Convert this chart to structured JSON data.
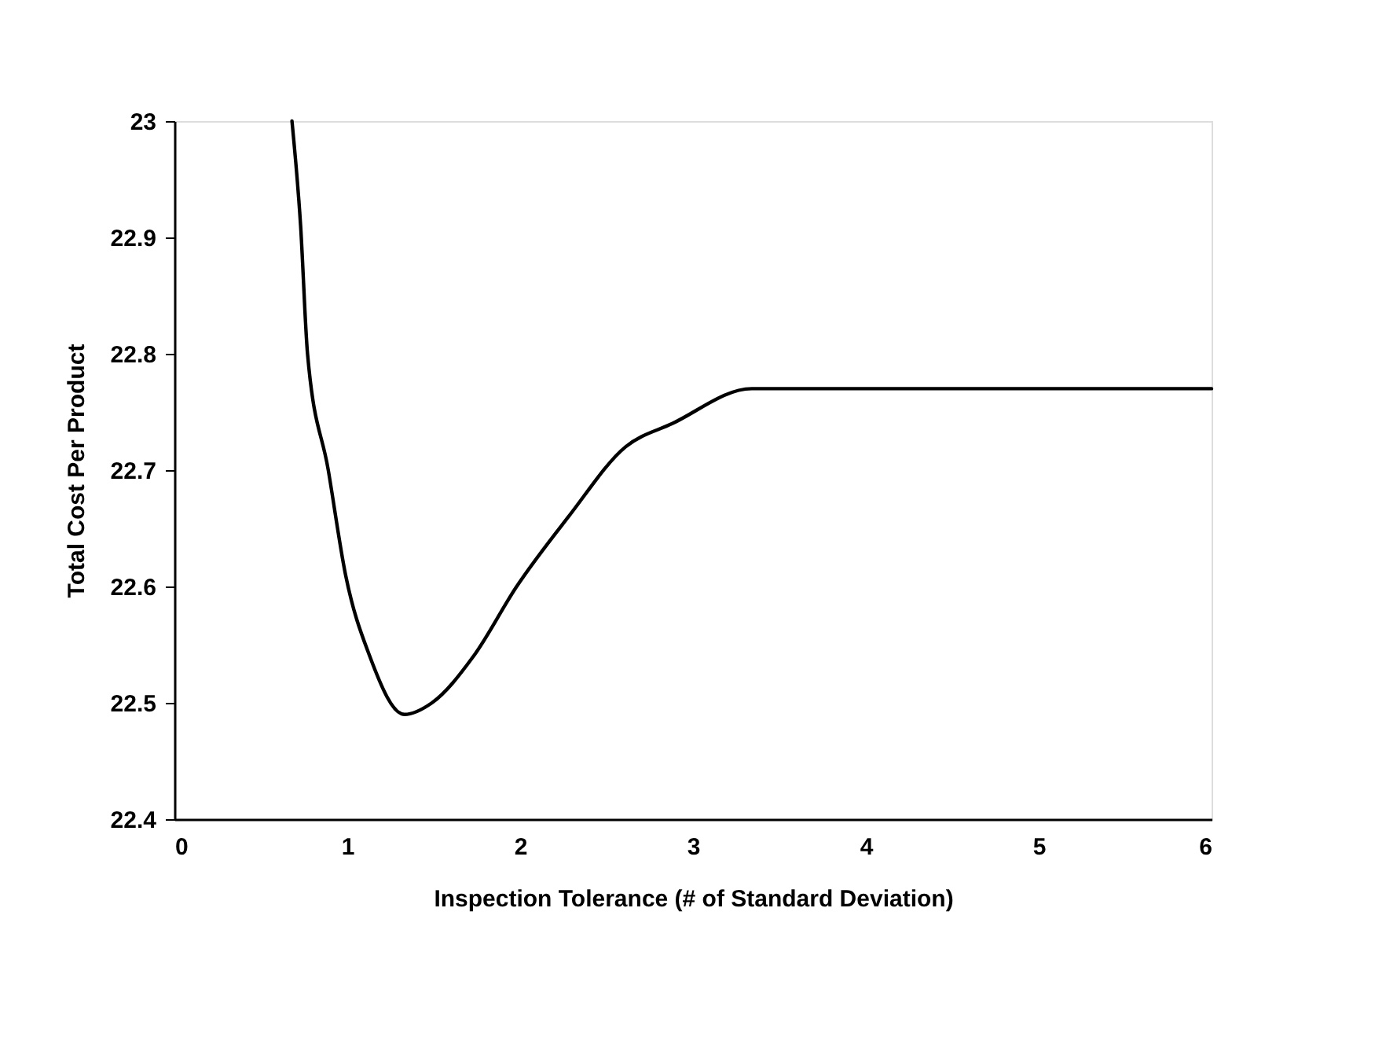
{
  "chart_data": {
    "type": "line",
    "xlabel": "Inspection Tolerance (# of Standard Deviation)",
    "ylabel": "Total Cost Per Product",
    "x": [
      0.68,
      0.73,
      0.77,
      0.89,
      0.99,
      1.13,
      1.33,
      1.49,
      1.73,
      1.98,
      2.28,
      2.61,
      2.88,
      3.34,
      3.49,
      6.0
    ],
    "series": [
      {
        "color": "#000000",
        "values": [
          23.0,
          22.91,
          22.8,
          22.7,
          22.61,
          22.54,
          22.49,
          22.5,
          22.54,
          22.6,
          22.66,
          22.72,
          22.74,
          22.77,
          22.77,
          22.77
        ]
      }
    ],
    "xlim": [
      0,
      6
    ],
    "xticks": [
      0,
      1,
      2,
      3,
      4,
      5,
      6
    ],
    "ylim": [
      22.4,
      23
    ],
    "yticks": [
      22.4,
      22.5,
      22.6,
      22.7,
      22.8,
      22.9,
      23
    ],
    "grid": false,
    "legend": false,
    "marker": "none",
    "line_style": "solid"
  }
}
